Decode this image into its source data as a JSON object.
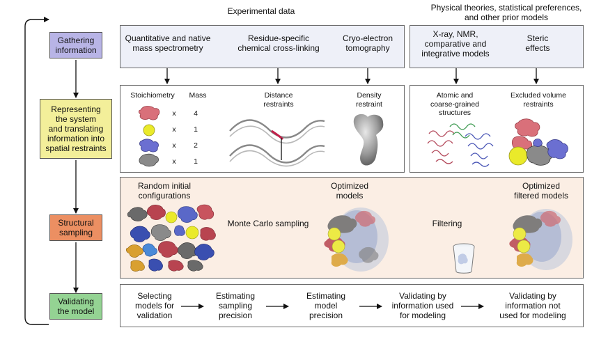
{
  "headers": {
    "experimental": "Experimental data",
    "physical": "Physical theories, statistical preferences,\nand other prior models"
  },
  "stages": {
    "gathering": "Gathering\ninformation",
    "representing": "Representing\nthe system\nand translating\ninformation into\nspatial restraints",
    "sampling": "Structural\nsampling",
    "validating": "Validating\nthe model"
  },
  "colors": {
    "gathering": "#b8b4e6",
    "representing": "#f3ef9a",
    "sampling": "#ec8f62",
    "validating": "#94d393",
    "panel_top": "#eef0f8",
    "panel_sampling": "#fbeee4",
    "stoich_pink": "#d9707a",
    "stoich_yellow": "#eaea2a",
    "stoich_blue": "#6b6fd1",
    "stoich_gray": "#8a8a8a"
  },
  "experimental_data": [
    "Quantitative and native\nmass spectrometry",
    "Residue-specific\nchemical cross-linking",
    "Cryo-electron\ntomography"
  ],
  "prior_models": [
    "X-ray, NMR,\ncomparative and\nintegrative models",
    "Steric\neffects"
  ],
  "restraints": {
    "stoich_header": "Stoichiometry",
    "mass_header": "Mass",
    "stoich_rows": [
      {
        "icon": "pink-subunit-icon",
        "x": "x",
        "count": "4"
      },
      {
        "icon": "yellow-subunit-icon",
        "x": "x",
        "count": "1"
      },
      {
        "icon": "blue-subunit-icon",
        "x": "x",
        "count": "2"
      },
      {
        "icon": "gray-subunit-icon",
        "x": "x",
        "count": "1"
      }
    ],
    "distance": "Distance\nrestraints",
    "density": "Density\nrestraint",
    "atomic": "Atomic and\ncoarse-grained\nstructures",
    "excluded": "Excluded volume\nrestraints"
  },
  "sampling_panel": {
    "random": "Random initial\nconfigurations",
    "monte_carlo": "Monte Carlo sampling",
    "optimized": "Optimized\nmodels",
    "filtering": "Filtering",
    "filtered": "Optimized\nfiltered models"
  },
  "validation_steps": [
    "Selecting\nmodels for\nvalidation",
    "Estimating\nsampling\nprecision",
    "Estimating\nmodel\nprecision",
    "Validating by\ninformation used\nfor modeling",
    "Validating by\ninformation not\nused for modeling"
  ]
}
